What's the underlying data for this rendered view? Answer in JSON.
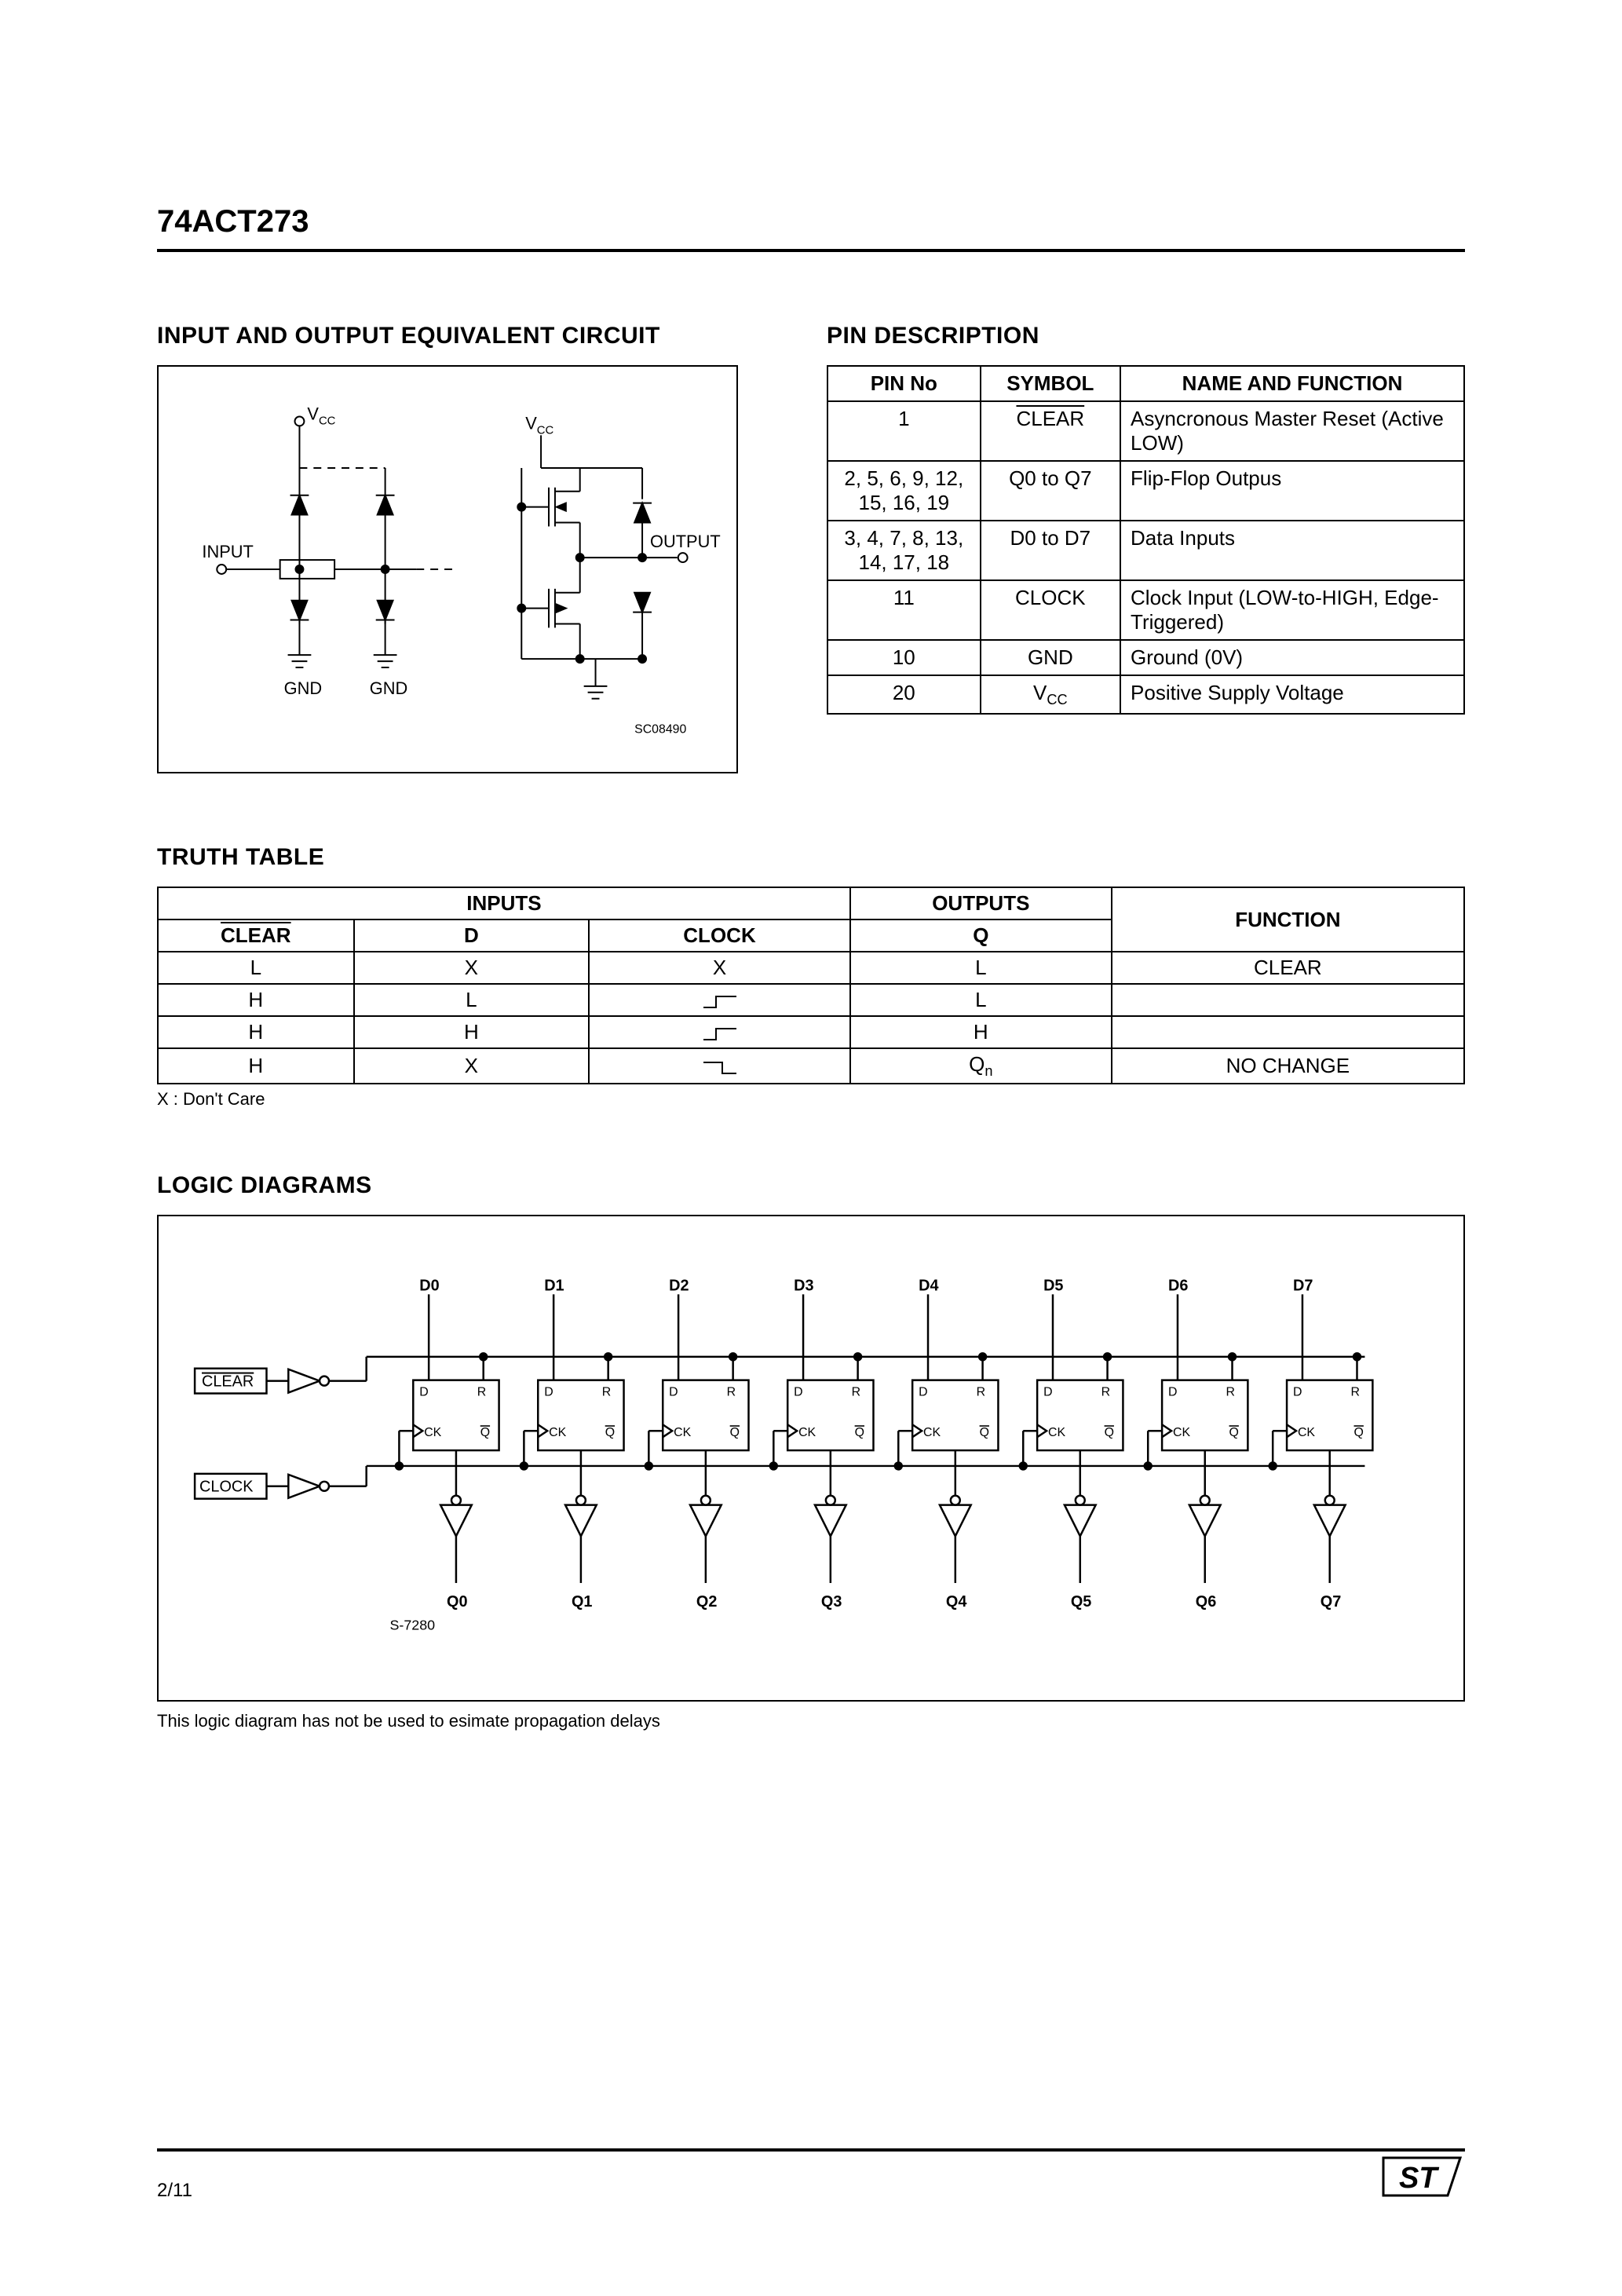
{
  "header": {
    "part_number": "74ACT273"
  },
  "sections": {
    "circuit_heading": "INPUT AND OUTPUT EQUIVALENT CIRCUIT",
    "pin_heading": "PIN DESCRIPTION",
    "truth_heading": "TRUTH TABLE",
    "logic_heading": "LOGIC DIAGRAMS"
  },
  "circuit": {
    "labels": {
      "vcc1": "V",
      "vcc1_sub": "CC",
      "vcc2": "V",
      "vcc2_sub": "CC",
      "input": "INPUT",
      "output": "OUTPUT",
      "gnd1": "GND",
      "gnd2": "GND",
      "code": "SC08490"
    },
    "colors": {
      "line": "#000000",
      "bg": "#ffffff"
    },
    "line_width": 2
  },
  "pin_table": {
    "headers": [
      "PIN No",
      "SYMBOL",
      "NAME AND FUNCTION"
    ],
    "rows": [
      {
        "pin": "1",
        "symbol_overline": "CLEAR",
        "func": "Asyncronous Master Reset (Active LOW)"
      },
      {
        "pin": "2, 5, 6, 9, 12, 15, 16, 19",
        "symbol": "Q0 to Q7",
        "func": "Flip-Flop Outpus"
      },
      {
        "pin": "3, 4, 7, 8, 13, 14, 17, 18",
        "symbol": "D0 to D7",
        "func": "Data Inputs"
      },
      {
        "pin": "11",
        "symbol": "CLOCK",
        "func": "Clock Input (LOW-to-HIGH, Edge-Triggered)"
      },
      {
        "pin": "10",
        "symbol": "GND",
        "func": "Ground (0V)"
      },
      {
        "pin": "20",
        "symbol_html": "V<sub>CC</sub>",
        "func": "Positive Supply Voltage"
      }
    ]
  },
  "truth_table": {
    "group_headers": {
      "inputs": "INPUTS",
      "outputs": "OUTPUTS",
      "function": "FUNCTION"
    },
    "sub_headers": {
      "clear": "CLEAR",
      "d": "D",
      "clock": "CLOCK",
      "q": "Q"
    },
    "rows": [
      {
        "clear": "L",
        "d": "X",
        "clock": "X",
        "q": "L",
        "func": "CLEAR"
      },
      {
        "clear": "H",
        "d": "L",
        "clock_edge": "rise",
        "q": "L",
        "func": ""
      },
      {
        "clear": "H",
        "d": "H",
        "clock_edge": "rise",
        "q": "H",
        "func": ""
      },
      {
        "clear": "H",
        "d": "X",
        "clock_edge": "fall",
        "q_sub": "Qn",
        "func": "NO CHANGE"
      }
    ],
    "footnote": "X : Don't Care"
  },
  "logic": {
    "note": "This logic diagram has not be used to esimate propagation delays",
    "d_labels": [
      "D0",
      "D1",
      "D2",
      "D3",
      "D4",
      "D5",
      "D6",
      "D7"
    ],
    "q_labels": [
      "Q0",
      "Q1",
      "Q2",
      "Q3",
      "Q4",
      "Q5",
      "Q6",
      "Q7"
    ],
    "clear_label": "CLEAR",
    "clock_label": "CLOCK",
    "ff_labels": {
      "d": "D",
      "r": "R",
      "ck": "CK",
      "q": "Q",
      "qbar": "Q"
    },
    "code": "S-7280",
    "colors": {
      "line": "#000000"
    },
    "line_width": 2
  },
  "footer": {
    "page": "2/11",
    "logo_text": "ST"
  }
}
